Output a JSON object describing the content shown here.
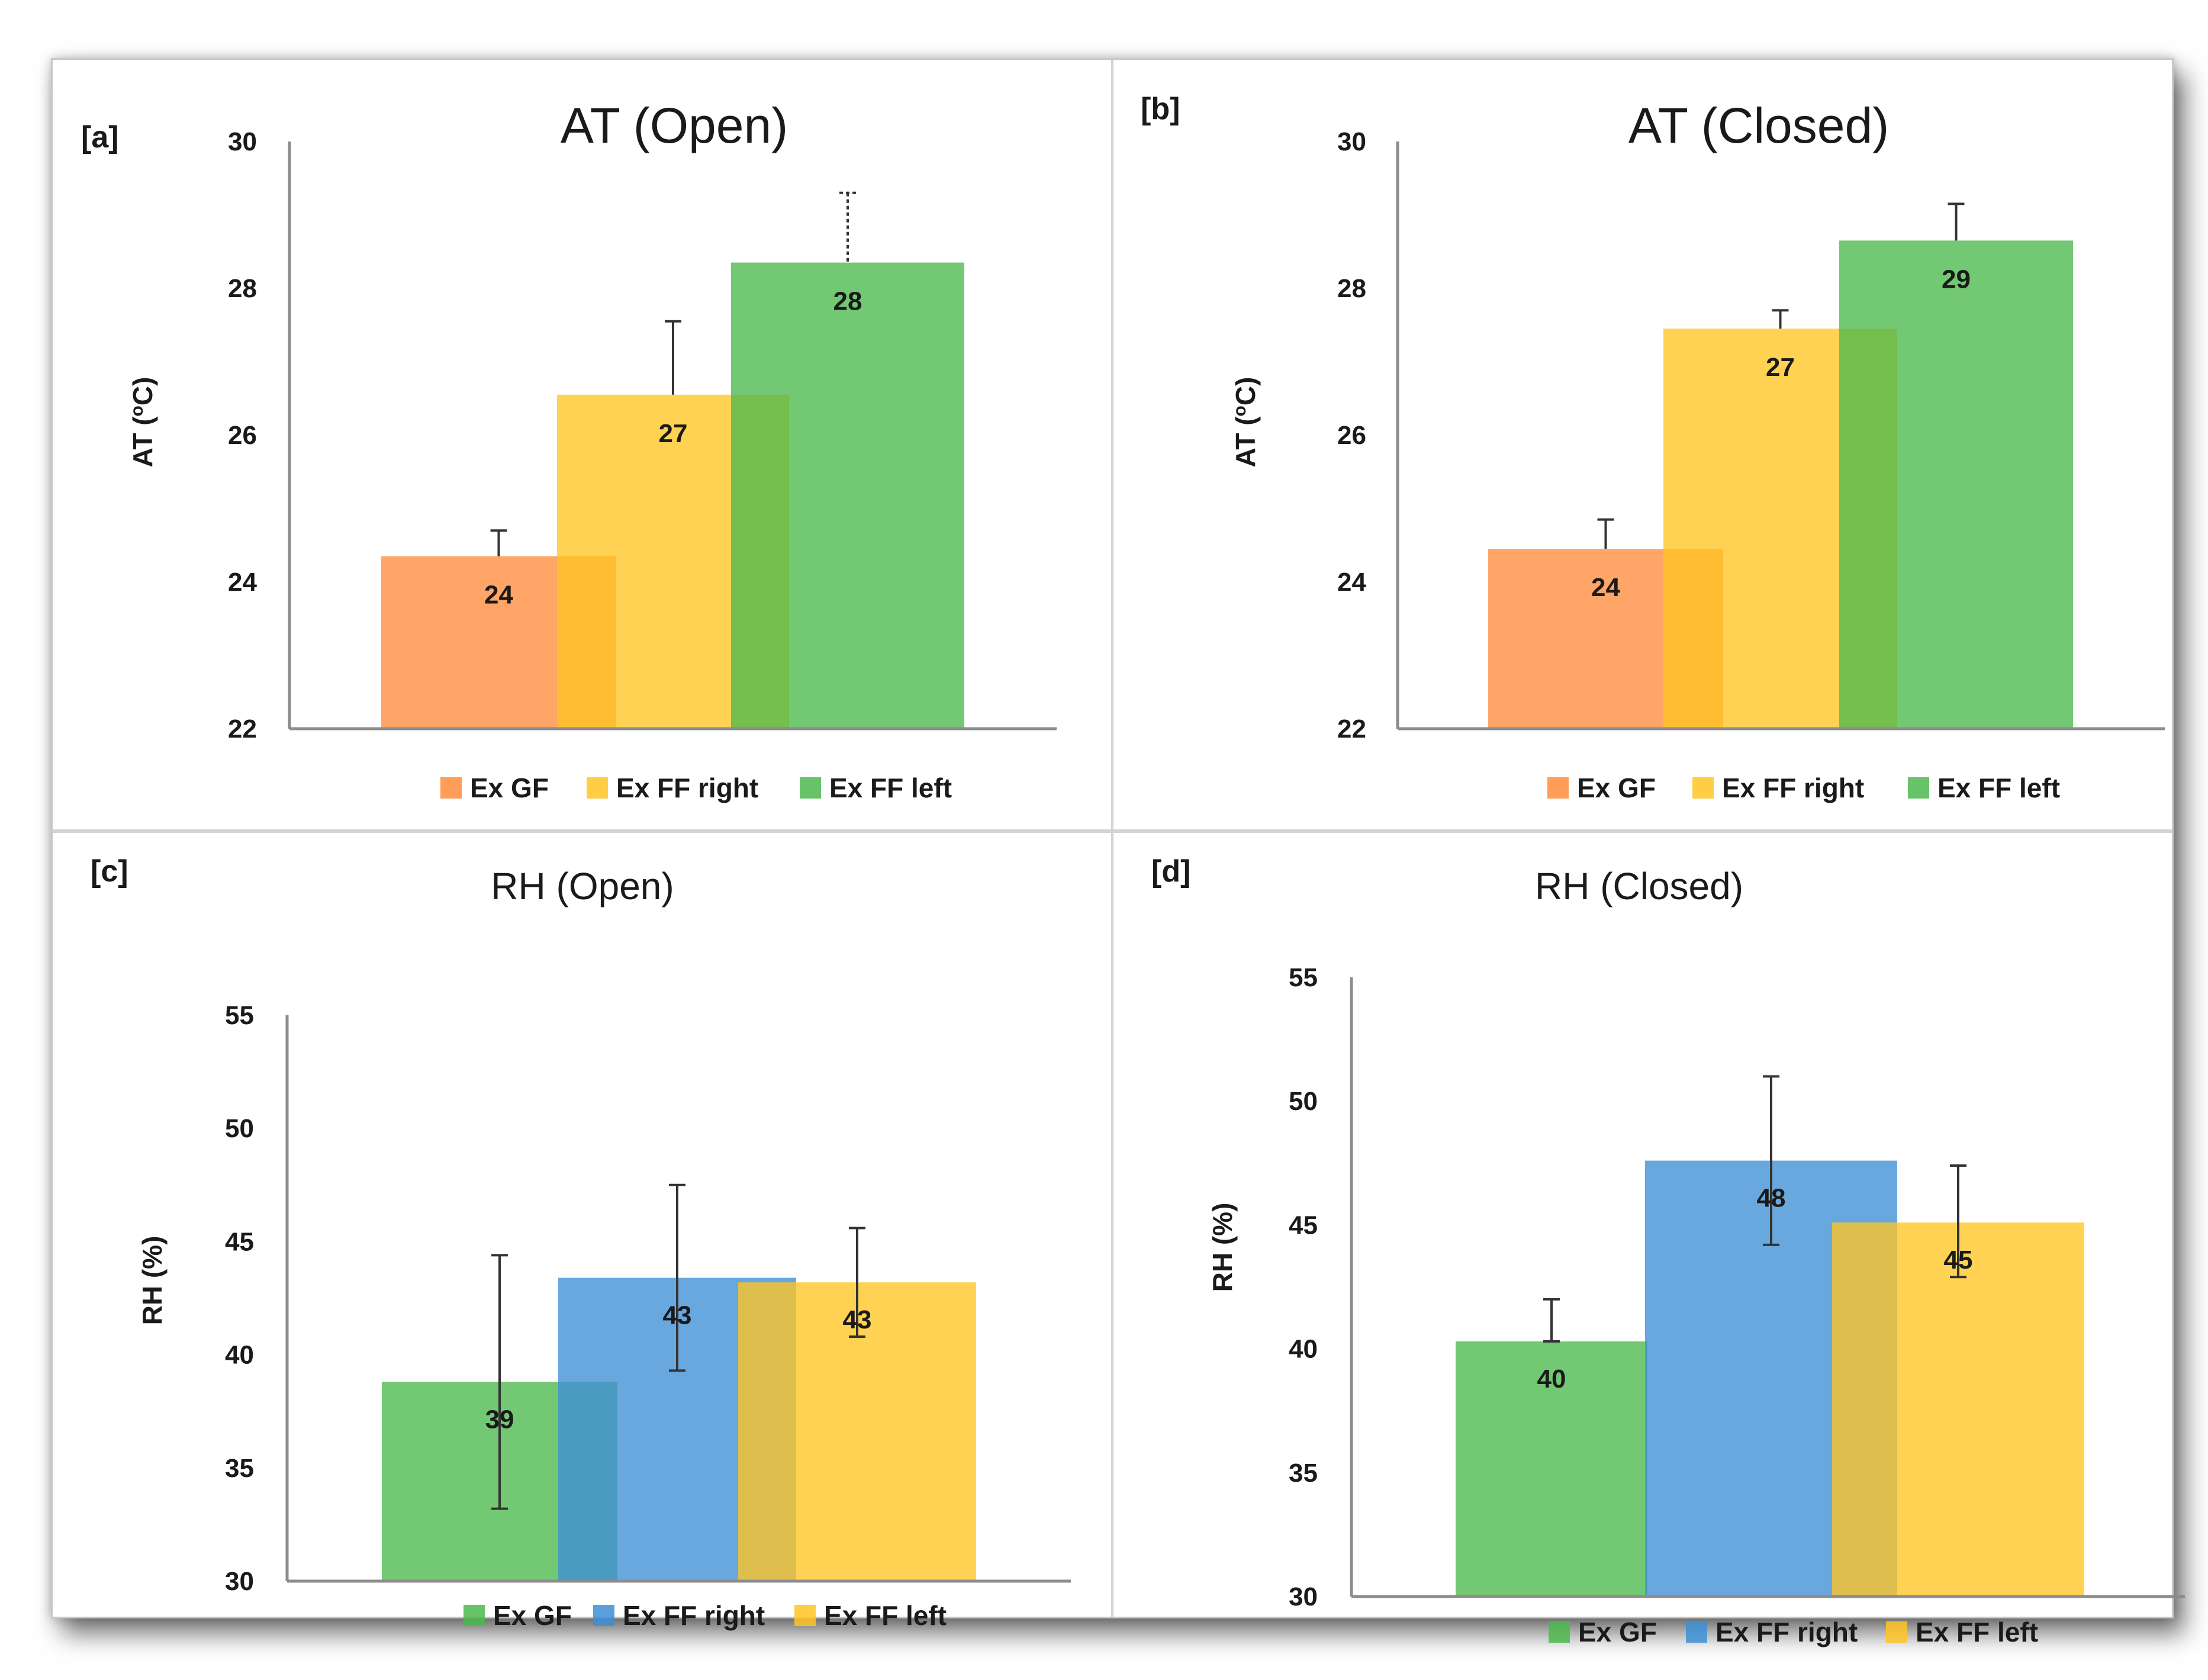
{
  "chart_data": [
    {
      "type": "bar",
      "panel": "[a]",
      "title": "AT (Open)",
      "ylabel": "AT (",
      "ylabel_sup": "o",
      "ylabel_end": "C)",
      "ylim": [
        22,
        30
      ],
      "yticks": [
        22,
        24,
        26,
        28,
        30
      ],
      "series": [
        {
          "name": "Ex GF",
          "value": 24.35,
          "label": "24",
          "err_top": 24.7,
          "color": "#ff8c3c"
        },
        {
          "name": "Ex FF right",
          "value": 26.55,
          "label": "27",
          "err_top": 27.55,
          "color": "#ffc524"
        },
        {
          "name": "Ex FF left",
          "value": 28.35,
          "label": "28",
          "err_top": 29.3,
          "color": "#4cb84c"
        }
      ]
    },
    {
      "type": "bar",
      "panel": "[b]",
      "title": "AT (Closed)",
      "ylabel": "AT (",
      "ylabel_sup": "o",
      "ylabel_end": "C)",
      "ylim": [
        22,
        30
      ],
      "yticks": [
        22,
        24,
        26,
        28,
        30
      ],
      "series": [
        {
          "name": "Ex GF",
          "value": 24.45,
          "label": "24",
          "err_top": 24.85,
          "color": "#ff8c3c"
        },
        {
          "name": "Ex FF right",
          "value": 27.45,
          "label": "27",
          "err_top": 27.7,
          "color": "#ffc524"
        },
        {
          "name": "Ex FF left",
          "value": 28.65,
          "label": "29",
          "err_top": 29.15,
          "color": "#4cb84c"
        }
      ]
    },
    {
      "type": "bar",
      "panel": "[c]",
      "title": "RH (Open)",
      "ylabel": "RH (%)",
      "ylim": [
        30,
        55
      ],
      "yticks": [
        30,
        35,
        40,
        45,
        50,
        55
      ],
      "series": [
        {
          "name": "Ex GF",
          "value": 38.8,
          "label": "39",
          "err_top": 44.4,
          "err_bottom": 33.2,
          "color": "#4cb84c"
        },
        {
          "name": "Ex FF right",
          "value": 43.4,
          "label": "43",
          "err_top": 47.5,
          "err_bottom": 39.3,
          "color": "#3d8fd6"
        },
        {
          "name": "Ex FF left",
          "value": 43.2,
          "label": "43",
          "err_top": 45.6,
          "err_bottom": 40.8,
          "color": "#ffc524"
        }
      ]
    },
    {
      "type": "bar",
      "panel": "[d]",
      "title": "RH (Closed)",
      "ylabel": "RH (%)",
      "ylim": [
        30,
        55
      ],
      "yticks": [
        30,
        35,
        40,
        45,
        50,
        55
      ],
      "series": [
        {
          "name": "Ex GF",
          "value": 40.3,
          "label": "40",
          "err_top": 42.0,
          "err_bottom": 40.3,
          "color": "#4cb84c"
        },
        {
          "name": "Ex FF right",
          "value": 47.6,
          "label": "48",
          "err_top": 51.0,
          "err_bottom": 44.2,
          "color": "#3d8fd6"
        },
        {
          "name": "Ex FF left",
          "value": 45.1,
          "label": "45",
          "err_top": 47.4,
          "err_bottom": 42.9,
          "color": "#ffc524"
        }
      ]
    }
  ]
}
